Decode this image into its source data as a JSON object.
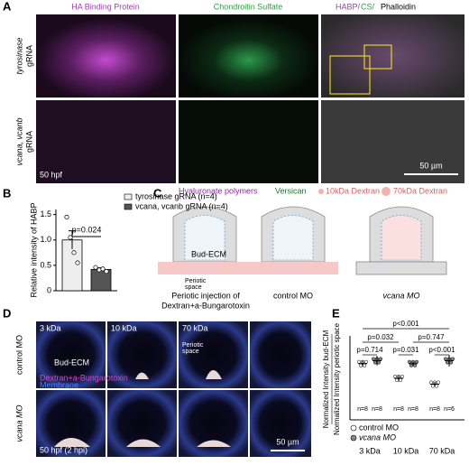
{
  "panels": {
    "A": {
      "letter": "A",
      "headers": [
        "HA Binding Protein",
        "Chondroitin Sulfate"
      ],
      "merge_header": [
        "HABP/",
        "CS/",
        "Phalloidin"
      ],
      "rows": [
        [
          "tyrosinase",
          "gRNA"
        ],
        [
          "vcana, vcanb",
          "gRNA"
        ]
      ],
      "stage": "50 hpf",
      "scale": "50 µm"
    },
    "C": {
      "letter": "C",
      "legend": [
        "Hyaluronate polymers",
        "Versican",
        "10kDa Dextran",
        "70kDa Dextran"
      ],
      "bud_ecm": "Bud-ECM",
      "periotic": [
        "Periotic",
        "space"
      ],
      "injection": [
        "Periotic injection of",
        "Dextran+a-Bungarotoxin"
      ],
      "conditions": [
        "control MO",
        "vcana MO"
      ]
    },
    "D": {
      "letter": "D",
      "columns": [
        "3 kDa",
        "10 kDa",
        "70 kDa"
      ],
      "rows": [
        "control MO",
        "vcana MO"
      ],
      "bud_ecm": "Bud-ECM",
      "periotic": [
        "Periotic",
        "space"
      ],
      "stain": "Dextran+a-Bungarotoxin",
      "membrane": "Membrane",
      "stage": "50 hpf (2 hpi)",
      "scale": "50 µm"
    }
  },
  "chart_data": [
    {
      "type": "bar",
      "letter": "B",
      "ylabel": "Relative intensity of HABP",
      "series": [
        {
          "name": "tyrosinase gRNA (n=4)",
          "color": "#eeeeee",
          "values": [
            1.0
          ],
          "errors": [
            0.18
          ],
          "points": [
            1.45,
            1.05,
            0.75,
            0.55
          ]
        },
        {
          "name": "vcana, vcanb gRNA (n=4)",
          "color": "#555555",
          "values": [
            0.42
          ],
          "errors": [
            0.03
          ],
          "points": [
            0.46,
            0.41,
            0.43,
            0.38
          ]
        }
      ],
      "annotation": "p=0.024",
      "ylim": [
        0,
        1.6
      ],
      "yticks": [
        0,
        0.5,
        {
          "value": 1,
          "label": "1.0"
        },
        1.5
      ]
    },
    {
      "type": "dot",
      "letter": "E",
      "ylabel": [
        "Normalized Intensity bud-ECM",
        "Normalized Intensity periotic space"
      ],
      "categories": [
        "3 kDa",
        "10 kDa",
        "70 kDa"
      ],
      "series": [
        {
          "name": "control MO",
          "color": "#ffffff",
          "values": [
            -0.35,
            -0.6,
            -0.7
          ],
          "errors": [
            0.05,
            0.05,
            0.04
          ],
          "n_labels": [
            "n=8",
            "n=8",
            "n=8"
          ]
        },
        {
          "name": "vcana MO",
          "color": "#888888",
          "values": [
            -0.3,
            -0.35,
            -0.3
          ],
          "errors": [
            0.08,
            0.03,
            0.1
          ],
          "n_labels": [
            "n=8",
            "n=8",
            "n=6"
          ]
        }
      ],
      "comparisons": [
        "p<0.001",
        "p=0.032",
        "p=0.747",
        "p=0.714",
        "p=0.031",
        "p<0.001"
      ],
      "ylim": [
        -1,
        0
      ]
    }
  ]
}
